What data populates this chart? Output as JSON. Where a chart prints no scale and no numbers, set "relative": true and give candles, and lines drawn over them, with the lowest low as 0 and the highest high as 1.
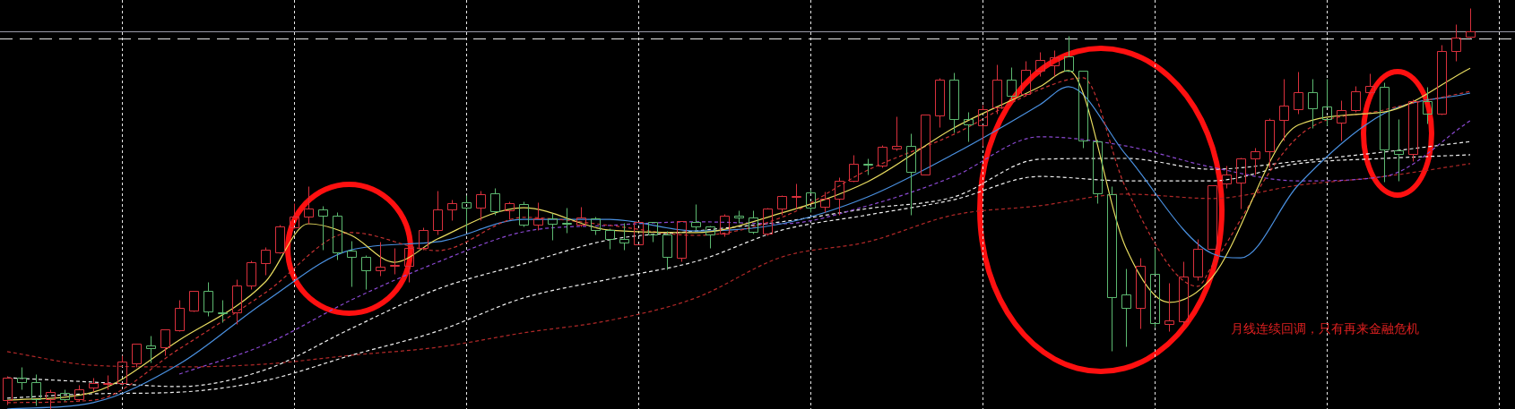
{
  "chart_data": {
    "type": "candlestick",
    "relative": true,
    "grid": "x",
    "legend": false,
    "marker": "none",
    "categories": [
      null,
      null,
      null,
      null,
      null,
      null,
      null,
      null,
      null,
      null,
      null,
      null,
      null,
      null,
      null,
      null,
      null,
      null,
      null,
      null,
      null,
      null,
      null,
      null,
      null,
      null,
      null,
      null,
      null,
      null,
      null,
      null,
      null,
      null,
      null,
      null,
      null,
      null,
      null,
      null,
      null,
      null,
      null,
      null,
      null,
      null,
      null,
      null,
      null,
      null,
      null,
      null,
      null,
      null,
      null,
      null,
      null,
      null,
      null,
      null,
      null,
      null,
      null,
      null,
      null,
      null,
      null,
      null,
      null,
      null,
      null,
      null,
      null,
      null,
      null,
      null,
      null,
      null,
      null,
      null,
      null,
      null,
      null,
      null,
      null,
      null,
      null,
      null,
      null,
      null,
      null,
      null,
      null,
      null,
      null,
      null,
      null,
      null,
      null,
      null,
      null,
      null,
      null
    ],
    "ohlc": [
      [
        0.022,
        0.083,
        0.011,
        0.078
      ],
      [
        0.078,
        0.105,
        0.049,
        0.067
      ],
      [
        0.067,
        0.087,
        0.009,
        0.025
      ],
      [
        0.025,
        0.049,
        0,
        0.042
      ],
      [
        0.04,
        0.049,
        0.02,
        0.025
      ],
      [
        0.025,
        0.06,
        0.02,
        0.049
      ],
      [
        0.054,
        0.078,
        0.045,
        0.065
      ],
      [
        0.063,
        0.085,
        0.049,
        0.065
      ],
      [
        0.065,
        0.134,
        0.06,
        0.118
      ],
      [
        0.114,
        0.163,
        0.105,
        0.163
      ],
      [
        0.158,
        0.183,
        0.116,
        0.152
      ],
      [
        0.154,
        0.199,
        0.134,
        0.199
      ],
      [
        0.196,
        0.272,
        0.194,
        0.252
      ],
      [
        0.246,
        0.295,
        0.243,
        0.295
      ],
      [
        0.295,
        0.317,
        0.232,
        0.243
      ],
      [
        0.241,
        0.272,
        0.217,
        0.239
      ],
      [
        0.241,
        0.324,
        0.212,
        0.308
      ],
      [
        0.308,
        0.371,
        0.299,
        0.366
      ],
      [
        0.364,
        0.404,
        0.335,
        0.397
      ],
      [
        0.391,
        0.46,
        0.388,
        0.455
      ],
      [
        0.453,
        0.513,
        0.451,
        0.48
      ],
      [
        0.48,
        0.556,
        0.462,
        0.5
      ],
      [
        0.498,
        0.507,
        0.397,
        0.482
      ],
      [
        0.482,
        0.491,
        0.373,
        0.391
      ],
      [
        0.395,
        0.42,
        0.306,
        0.379
      ],
      [
        0.379,
        0.384,
        0.299,
        0.346
      ],
      [
        0.346,
        0.417,
        0.333,
        0.355
      ],
      [
        0.357,
        0.402,
        0.337,
        0.359
      ],
      [
        0.357,
        0.406,
        0.317,
        0.402
      ],
      [
        0.402,
        0.453,
        0.397,
        0.446
      ],
      [
        0.446,
        0.545,
        0.435,
        0.498
      ],
      [
        0.498,
        0.522,
        0.471,
        0.513
      ],
      [
        0.516,
        0.533,
        0.444,
        0.502
      ],
      [
        0.502,
        0.545,
        0.471,
        0.536
      ],
      [
        0.538,
        0.551,
        0.484,
        0.493
      ],
      [
        0.496,
        0.518,
        0.473,
        0.513
      ],
      [
        0.511,
        0.518,
        0.455,
        0.46
      ],
      [
        0.46,
        0.516,
        0.446,
        0.475
      ],
      [
        0.475,
        0.489,
        0.422,
        0.462
      ],
      [
        0.464,
        0.502,
        0.44,
        0.462
      ],
      [
        0.46,
        0.504,
        0.455,
        0.478
      ],
      [
        0.475,
        0.48,
        0.435,
        0.446
      ],
      [
        0.446,
        0.451,
        0.4,
        0.424
      ],
      [
        0.424,
        0.464,
        0.397,
        0.415
      ],
      [
        0.411,
        0.467,
        0.411,
        0.467
      ],
      [
        0.467,
        0.467,
        0.417,
        0.435
      ],
      [
        0.435,
        0.444,
        0.348,
        0.379
      ],
      [
        0.377,
        0.469,
        0.368,
        0.469
      ],
      [
        0.467,
        0.511,
        0.446,
        0.455
      ],
      [
        0.455,
        0.458,
        0.402,
        0.435
      ],
      [
        0.438,
        0.487,
        0.431,
        0.482
      ],
      [
        0.482,
        0.496,
        0.464,
        0.478
      ],
      [
        0.478,
        0.496,
        0.438,
        0.442
      ],
      [
        0.438,
        0.502,
        0.433,
        0.5
      ],
      [
        0.5,
        0.533,
        0.484,
        0.531
      ],
      [
        0.529,
        0.563,
        0.5,
        0.531
      ],
      [
        0.54,
        0.547,
        0.491,
        0.502
      ],
      [
        0.504,
        0.542,
        0.491,
        0.525
      ],
      [
        0.525,
        0.578,
        0.484,
        0.569
      ],
      [
        0.569,
        0.634,
        0.567,
        0.612
      ],
      [
        0.612,
        0.625,
        0.585,
        0.609
      ],
      [
        0.607,
        0.658,
        0.603,
        0.654
      ],
      [
        0.65,
        0.73,
        0.645,
        0.656
      ],
      [
        0.656,
        0.688,
        0.484,
        0.592
      ],
      [
        0.585,
        0.734,
        0.585,
        0.734
      ],
      [
        0.732,
        0.826,
        0.703,
        0.821
      ],
      [
        0.821,
        0.839,
        0.69,
        0.723
      ],
      [
        0.723,
        0.741,
        0.667,
        0.71
      ],
      [
        0.708,
        0.759,
        0.656,
        0.748
      ],
      [
        0.752,
        0.859,
        0.737,
        0.821
      ],
      [
        0.821,
        0.853,
        0.77,
        0.781
      ],
      [
        0.786,
        0.868,
        0.781,
        0.846
      ],
      [
        0.844,
        0.891,
        0.83,
        0.871
      ],
      [
        0.857,
        0.895,
        0.83,
        0.877
      ],
      [
        0.879,
        0.931,
        0.842,
        0.844
      ],
      [
        0.844,
        0.844,
        0.652,
        0.67
      ],
      [
        0.667,
        0.672,
        0.513,
        0.538
      ],
      [
        0.536,
        0.556,
        0.145,
        0.279
      ],
      [
        0.286,
        0.35,
        0.156,
        0.252
      ],
      [
        0.252,
        0.377,
        0.201,
        0.357
      ],
      [
        0.337,
        0.402,
        0.205,
        0.214
      ],
      [
        0.212,
        0.315,
        0.194,
        0.221
      ],
      [
        0.219,
        0.368,
        0.21,
        0.33
      ],
      [
        0.33,
        0.424,
        0.321,
        0.4
      ],
      [
        0.4,
        0.558,
        0.4,
        0.558
      ],
      [
        0.563,
        0.607,
        0.551,
        0.585
      ],
      [
        0.565,
        0.627,
        0.5,
        0.625
      ],
      [
        0.625,
        0.652,
        0.585,
        0.643
      ],
      [
        0.643,
        0.725,
        0.603,
        0.721
      ],
      [
        0.721,
        0.824,
        0.67,
        0.757
      ],
      [
        0.748,
        0.842,
        0.737,
        0.79
      ],
      [
        0.79,
        0.824,
        0.701,
        0.75
      ],
      [
        0.754,
        0.824,
        0.708,
        0.723
      ],
      [
        0.714,
        0.77,
        0.67,
        0.746
      ],
      [
        0.746,
        0.806,
        0.741,
        0.792
      ],
      [
        0.79,
        0.837,
        0.786,
        0.806
      ],
      [
        0.804,
        0.815,
        0.567,
        0.647
      ],
      [
        0.645,
        0.723,
        0.569,
        0.636
      ],
      [
        0.636,
        0.772,
        0.618,
        0.768
      ],
      [
        0.768,
        0.804,
        0.712,
        0.737
      ],
      [
        0.737,
        0.908,
        0.734,
        0.893
      ],
      [
        0.893,
        0.96,
        0.868,
        0.926
      ],
      [
        0.929,
        1,
        0.926,
        0.942
      ]
    ],
    "colors": [
      "#d8303c",
      "#5cb870",
      "#5cb870",
      "#d8303c",
      "#5cb870",
      "#d8303c",
      "#d8303c",
      "#d8303c",
      "#d8303c",
      "#d8303c",
      "#5cb870",
      "#d8303c",
      "#d8303c",
      "#d8303c",
      "#5cb870",
      "#5cb870",
      "#d8303c",
      "#d8303c",
      "#d8303c",
      "#d8303c",
      "#d8303c",
      "#d8303c",
      "#5cb870",
      "#5cb870",
      "#5cb870",
      "#5cb870",
      "#d8303c",
      "#d8303c",
      "#d8303c",
      "#d8303c",
      "#d8303c",
      "#d8303c",
      "#5cb870",
      "#d8303c",
      "#5cb870",
      "#d8303c",
      "#5cb870",
      "#d8303c",
      "#5cb870",
      "#5cb870",
      "#d8303c",
      "#5cb870",
      "#5cb870",
      "#5cb870",
      "#d8303c",
      "#5cb870",
      "#5cb870",
      "#d8303c",
      "#5cb870",
      "#5cb870",
      "#d8303c",
      "#5cb870",
      "#5cb870",
      "#d8303c",
      "#d8303c",
      "#d8303c",
      "#5cb870",
      "#d8303c",
      "#d8303c",
      "#d8303c",
      "#5cb870",
      "#d8303c",
      "#d8303c",
      "#5cb870",
      "#d8303c",
      "#d8303c",
      "#5cb870",
      "#5cb870",
      "#d8303c",
      "#d8303c",
      "#5cb870",
      "#d8303c",
      "#d8303c",
      "#d8303c",
      "#5cb870",
      "#5cb870",
      "#5cb870",
      "#5cb870",
      "#5cb870",
      "#d8303c",
      "#5cb870",
      "#d8303c",
      "#d8303c",
      "#d8303c",
      "#d8303c",
      "#d8303c",
      "#d8303c",
      "#d8303c",
      "#d8303c",
      "#d8303c",
      "#d8303c",
      "#5cb870",
      "#5cb870",
      "#d8303c",
      "#d8303c",
      "#d8303c",
      "#5cb870",
      "#5cb870",
      "#d8303c",
      "#5cb870",
      "#d8303c",
      "#d8303c",
      "#d8303c"
    ],
    "series": [
      {
        "type": "line",
        "color": "#e8dc60",
        "line_style": "solid",
        "values": [
          0.022,
          null,
          null,
          null,
          null,
          null,
          0.042,
          null,
          null,
          null,
          null,
          null,
          0.172,
          null,
          null,
          null,
          null,
          null,
          0.317,
          null,
          null,
          0.462,
          null,
          null,
          0.433,
          null,
          null,
          0.366,
          null,
          null,
          0.424,
          null,
          null,
          null,
          null,
          null,
          0.502,
          null,
          null,
          null,
          null,
          null,
          0.446,
          null,
          null,
          null,
          null,
          null,
          0.44,
          null,
          null,
          null,
          null,
          null,
          0.489,
          null,
          null,
          null,
          null,
          null,
          0.567,
          null,
          null,
          null,
          null,
          null,
          0.701,
          null,
          null,
          null,
          null,
          null,
          0.804,
          null,
          0.844,
          null,
          null,
          null,
          0.402,
          null,
          null,
          0.266,
          null,
          null,
          0.328,
          null,
          null,
          null,
          null,
          null,
          0.708,
          null,
          null,
          null,
          null,
          null,
          0.741,
          null,
          null,
          null,
          null,
          null,
          0.85
        ]
      },
      {
        "type": "line",
        "color": "#c83232",
        "line_style": "dashed",
        "values": [
          0.016,
          null,
          null,
          null,
          null,
          null,
          0.022,
          null,
          null,
          null,
          null,
          null,
          0.15,
          null,
          null,
          null,
          null,
          null,
          0.29,
          null,
          null,
          null,
          null,
          null,
          0.44,
          null,
          null,
          null,
          null,
          null,
          0.395,
          null,
          null,
          null,
          null,
          null,
          0.478,
          null,
          null,
          null,
          null,
          null,
          0.458,
          null,
          null,
          null,
          null,
          null,
          0.433,
          null,
          null,
          null,
          null,
          null,
          0.478,
          null,
          null,
          null,
          null,
          null,
          0.596,
          null,
          null,
          null,
          null,
          null,
          0.685,
          null,
          null,
          null,
          null,
          null,
          0.797,
          null,
          null,
          0.826,
          null,
          null,
          0.551,
          null,
          null,
          null,
          null,
          0.306,
          0.357,
          null,
          null,
          null,
          null,
          null,
          0.679,
          null,
          null,
          null,
          null,
          null,
          0.746,
          null,
          null,
          null,
          null,
          null,
          0.792
        ]
      },
      {
        "type": "line",
        "color": "#4a90e0",
        "line_style": "solid",
        "values": [
          0,
          null,
          null,
          null,
          null,
          null,
          0.016,
          null,
          null,
          null,
          null,
          null,
          0.112,
          null,
          null,
          null,
          null,
          null,
          0.268,
          null,
          null,
          null,
          null,
          null,
          0.397,
          null,
          null,
          null,
          null,
          null,
          0.417,
          null,
          null,
          null,
          null,
          null,
          0.473,
          null,
          null,
          null,
          null,
          null,
          0.473,
          null,
          null,
          null,
          null,
          null,
          0.444,
          null,
          null,
          null,
          null,
          null,
          0.462,
          null,
          null,
          null,
          null,
          null,
          0.529,
          null,
          null,
          null,
          null,
          null,
          0.636,
          null,
          null,
          null,
          null,
          null,
          0.759,
          null,
          0.804,
          null,
          null,
          null,
          0.634,
          null,
          null,
          null,
          null,
          null,
          0.388,
          null,
          0.377,
          null,
          null,
          null,
          0.558,
          null,
          null,
          null,
          null,
          null,
          0.737,
          null,
          null,
          null,
          null,
          null,
          0.788
        ]
      },
      {
        "type": "line",
        "color": "#8a48d0",
        "line_style": "dashed",
        "values": [
          null,
          null,
          null,
          null,
          null,
          null,
          null,
          null,
          null,
          null,
          null,
          null,
          0.087,
          null,
          null,
          null,
          null,
          null,
          0.161,
          null,
          null,
          null,
          null,
          null,
          0.272,
          null,
          null,
          null,
          null,
          null,
          0.366,
          null,
          null,
          null,
          null,
          null,
          0.442,
          null,
          null,
          null,
          null,
          null,
          0.458,
          null,
          null,
          null,
          null,
          null,
          0.467,
          null,
          null,
          null,
          null,
          null,
          0.462,
          null,
          null,
          null,
          null,
          null,
          0.507,
          null,
          null,
          null,
          null,
          null,
          0.58,
          null,
          null,
          null,
          null,
          null,
          0.679,
          null,
          null,
          null,
          null,
          null,
          0.656,
          null,
          null,
          null,
          null,
          null,
          0.603,
          null,
          null,
          null,
          null,
          null,
          0.569,
          null,
          null,
          null,
          null,
          null,
          0.58,
          null,
          null,
          null,
          null,
          null,
          0.719
        ]
      },
      {
        "type": "line",
        "color": "#f0f0f0",
        "line_style": "dashed",
        "values": [
          0.078,
          null,
          null,
          null,
          null,
          null,
          0.067,
          null,
          null,
          null,
          null,
          null,
          0.056,
          null,
          null,
          null,
          null,
          null,
          0.098,
          null,
          null,
          null,
          null,
          null,
          0.201,
          null,
          null,
          null,
          null,
          null,
          0.299,
          null,
          null,
          null,
          null,
          null,
          0.362,
          null,
          null,
          null,
          null,
          null,
          0.422,
          null,
          null,
          null,
          null,
          null,
          0.444,
          null,
          null,
          null,
          null,
          null,
          0.467,
          null,
          null,
          null,
          null,
          null,
          0.5,
          null,
          null,
          null,
          null,
          null,
          0.529,
          null,
          null,
          null,
          null,
          null,
          0.623,
          null,
          null,
          null,
          null,
          null,
          0.625,
          null,
          null,
          null,
          null,
          null,
          0.598,
          null,
          null,
          null,
          null,
          null,
          0.618,
          null,
          null,
          null,
          null,
          null,
          0.641,
          null,
          null,
          null,
          null,
          null,
          0.667
        ]
      },
      {
        "type": "line",
        "color": "#f0f0f0",
        "line_style": "dashed",
        "values": [
          0.027,
          null,
          null,
          null,
          null,
          null,
          0.038,
          null,
          null,
          null,
          null,
          null,
          0.042,
          null,
          null,
          null,
          null,
          null,
          0.071,
          null,
          null,
          null,
          null,
          null,
          0.134,
          null,
          null,
          null,
          null,
          null,
          0.194,
          null,
          null,
          null,
          null,
          null,
          0.277,
          null,
          null,
          null,
          null,
          null,
          0.324,
          null,
          null,
          null,
          null,
          null,
          0.368,
          null,
          null,
          null,
          null,
          null,
          0.446,
          null,
          null,
          null,
          null,
          null,
          0.484,
          null,
          null,
          null,
          null,
          null,
          0.522,
          null,
          null,
          null,
          null,
          null,
          0.58,
          null,
          null,
          null,
          null,
          null,
          0.569,
          null,
          null,
          null,
          null,
          null,
          0.569,
          null,
          null,
          null,
          null,
          null,
          0.612,
          null,
          null,
          null,
          null,
          null,
          0.625,
          null,
          null,
          null,
          null,
          null,
          0.634
        ]
      },
      {
        "type": "line",
        "color": "#b02828",
        "line_style": "dashed",
        "values": [
          0.143,
          null,
          null,
          null,
          null,
          null,
          0.109,
          null,
          null,
          null,
          null,
          null,
          0.105,
          null,
          null,
          null,
          null,
          null,
          0.112,
          null,
          null,
          null,
          null,
          null,
          0.134,
          null,
          null,
          null,
          null,
          null,
          0.154,
          null,
          null,
          null,
          null,
          null,
          0.19,
          null,
          null,
          null,
          null,
          null,
          0.221,
          null,
          null,
          null,
          null,
          null,
          0.277,
          null,
          null,
          null,
          null,
          null,
          0.379,
          null,
          null,
          null,
          null,
          null,
          0.417,
          null,
          null,
          null,
          null,
          null,
          0.484,
          null,
          null,
          null,
          null,
          null,
          0.507,
          null,
          null,
          null,
          null,
          null,
          0.536,
          null,
          null,
          null,
          null,
          null,
          0.525,
          null,
          null,
          null,
          null,
          null,
          0.558,
          null,
          null,
          null,
          null,
          null,
          0.58,
          null,
          null,
          null,
          null,
          null,
          0.612
        ]
      }
    ],
    "ref_lines": [
      {
        "axis": "y",
        "value": 0.942,
        "color": "#9a9aa8",
        "line_style": "solid"
      },
      {
        "axis": "y",
        "value": 0.924,
        "color": "#e8e8e8",
        "line_style": "dashed"
      }
    ],
    "annotations": [
      "月线连续回调，只有再来金融危机"
    ]
  }
}
